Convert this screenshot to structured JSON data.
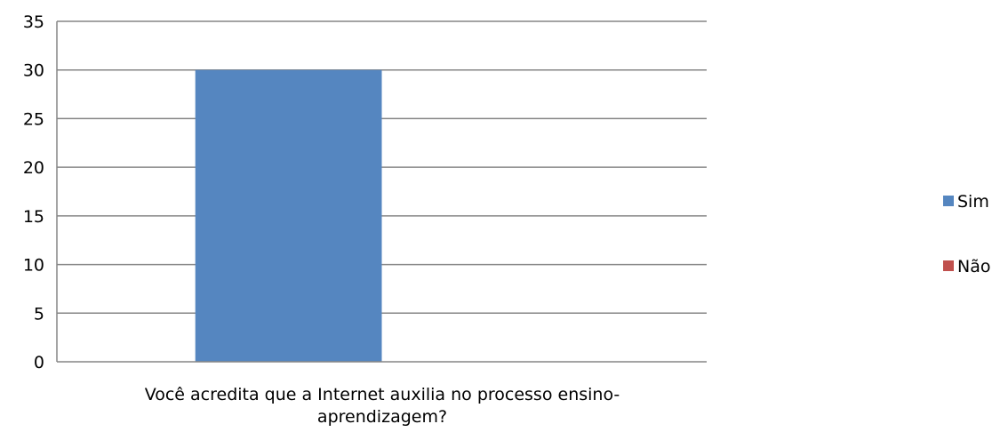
{
  "chart_data": {
    "type": "bar",
    "categories": [
      "Você acredita que a Internet auxilia no processo ensino-aprendizagem?"
    ],
    "category_label_lines": [
      "Você acredita que a Internet auxilia no processo ensino-",
      "aprendizagem?"
    ],
    "series": [
      {
        "name": "Sim",
        "values": [
          30
        ],
        "color": "#5586C0"
      },
      {
        "name": "Não",
        "values": [
          0
        ],
        "color": "#C0504D"
      }
    ],
    "ylim": [
      0,
      35
    ],
    "yticks": [
      "0",
      "5",
      "10",
      "15",
      "20",
      "25",
      "30",
      "35"
    ],
    "title": "",
    "xlabel": "",
    "ylabel": "",
    "grid": true,
    "legend_position": "right"
  }
}
